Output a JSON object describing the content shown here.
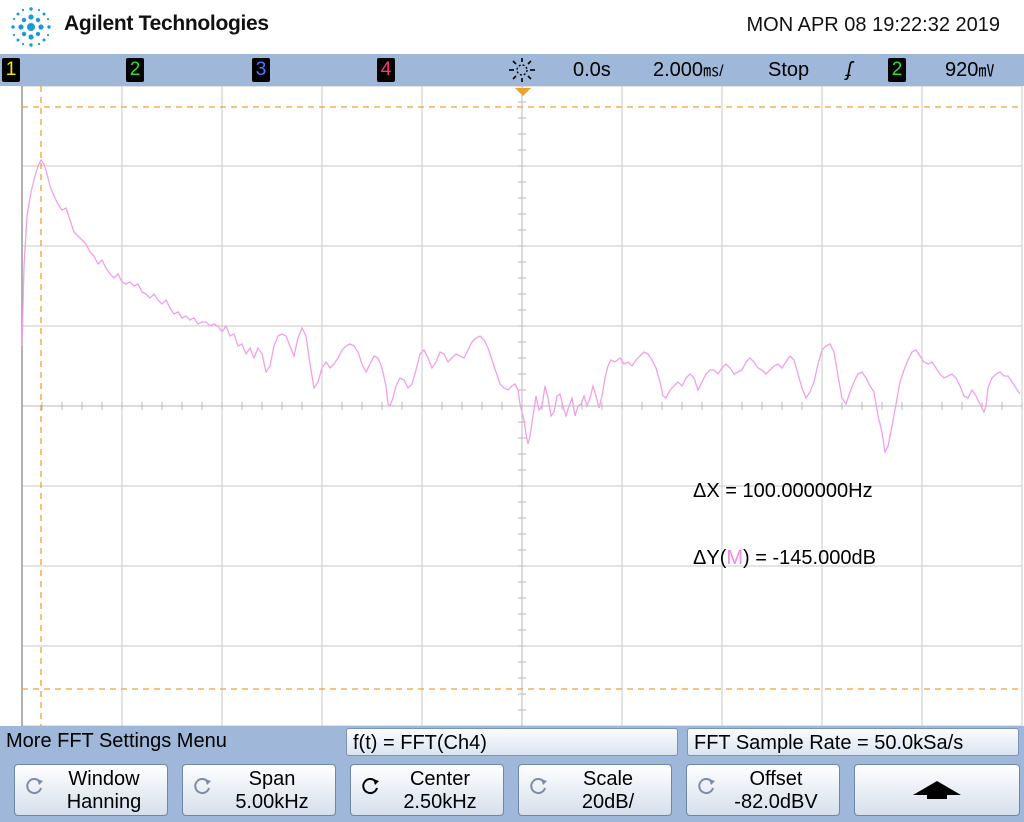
{
  "header": {
    "brand": "Agilent Technologies",
    "datetime": "MON APR 08 19:22:32 2019"
  },
  "status_bar": {
    "channels": [
      {
        "label": "1",
        "color": "#f5e900"
      },
      {
        "label": "2",
        "color": "#33dd33"
      },
      {
        "label": "3",
        "color": "#5577ff"
      },
      {
        "label": "4",
        "color": "#ff3377"
      }
    ],
    "trigger_mode_icon": "trigger-mode-icon",
    "time_delay": "0.0s",
    "time_scale": "2.000",
    "time_scale_unit": "㎳/",
    "run_state": "Stop",
    "trigger_slope_glyph": "ʄ",
    "trigger_source": "2",
    "trigger_level": "920",
    "trigger_level_unit": "㎷"
  },
  "readouts": {
    "delta_x": "ΔX = 100.000000Hz",
    "delta_y_prefix": "ΔY(",
    "delta_y_source": "M",
    "delta_y_suffix": ") = -145.000dB"
  },
  "colors": {
    "trace": "#f0a0e8",
    "cursor": "#f0a030",
    "grid": "#c8c8c8",
    "panel": "#9fb7d8"
  },
  "menu": {
    "title": "More FFT Settings Menu",
    "function": "f(t) = FFT(Ch4)",
    "sample_rate": "FFT Sample Rate = 50.0kSa/s",
    "softkeys": [
      {
        "line1": "Window",
        "line2": "Hanning"
      },
      {
        "line1": "Span",
        "line2": "5.00kHz"
      },
      {
        "line1": "Center",
        "line2": "2.50kHz"
      },
      {
        "line1": "Scale",
        "line2": "20dB/"
      },
      {
        "line1": "Offset",
        "line2": "-82.0dBV"
      }
    ]
  }
}
